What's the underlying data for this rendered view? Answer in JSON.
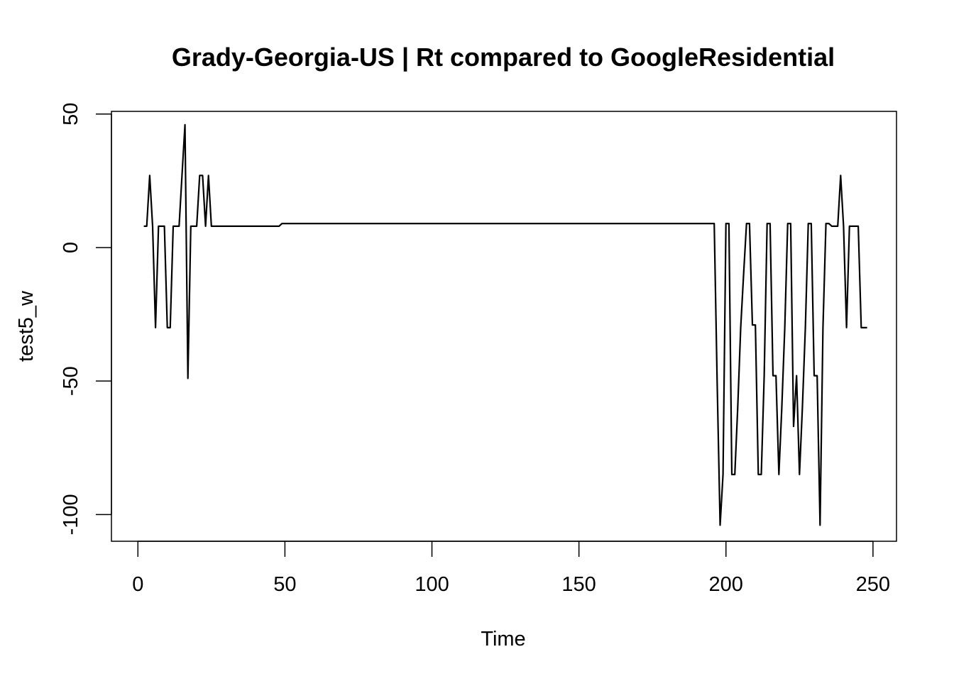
{
  "chart_data": {
    "type": "line",
    "title": "Grady-Georgia-US | Rt compared to GoogleResidential",
    "xlabel": "Time",
    "ylabel": "test5_w",
    "xlim": [
      -9,
      258
    ],
    "ylim": [
      -110,
      51
    ],
    "x_ticks": [
      0,
      50,
      100,
      150,
      200,
      250
    ],
    "y_ticks": [
      -100,
      -50,
      0,
      50
    ],
    "grid": false,
    "legend": "none",
    "line_color": "#000000",
    "series": [
      {
        "x": [
          2,
          3,
          4,
          5,
          6,
          7,
          8,
          9,
          10,
          11,
          12,
          13,
          14,
          15,
          16,
          17,
          18,
          19,
          20,
          21,
          22,
          23,
          24,
          25,
          26,
          27,
          28,
          48,
          49,
          52,
          196,
          197,
          198,
          199,
          200,
          201,
          202,
          203,
          204,
          205,
          206,
          207,
          208,
          209,
          210,
          211,
          212,
          213,
          214,
          215,
          216,
          217,
          218,
          219,
          220,
          221,
          222,
          223,
          224,
          225,
          226,
          227,
          228,
          229,
          230,
          231,
          232,
          233,
          234,
          235,
          236,
          237,
          238,
          239,
          240,
          241,
          242,
          243,
          244,
          245,
          246,
          247,
          248
        ],
        "values": [
          8,
          8,
          27,
          8,
          -30,
          8,
          8,
          8,
          -30,
          -30,
          8,
          8,
          8,
          27,
          46,
          -49,
          8,
          8,
          8,
          27,
          27,
          8,
          27,
          8,
          8,
          8,
          8,
          8,
          9,
          9,
          9,
          -50,
          -104,
          -85,
          9,
          9,
          -85,
          -85,
          -60,
          -30,
          -10,
          9,
          9,
          -29,
          -29,
          -85,
          -85,
          -48,
          9,
          9,
          -48,
          -48,
          -85,
          -60,
          -30,
          9,
          9,
          -67,
          -48,
          -85,
          -60,
          -30,
          9,
          9,
          -48,
          -48,
          -104,
          -30,
          9,
          9,
          8,
          8,
          8,
          27,
          8,
          -30,
          8,
          8,
          8,
          8,
          -30,
          -30,
          -30
        ]
      }
    ]
  }
}
